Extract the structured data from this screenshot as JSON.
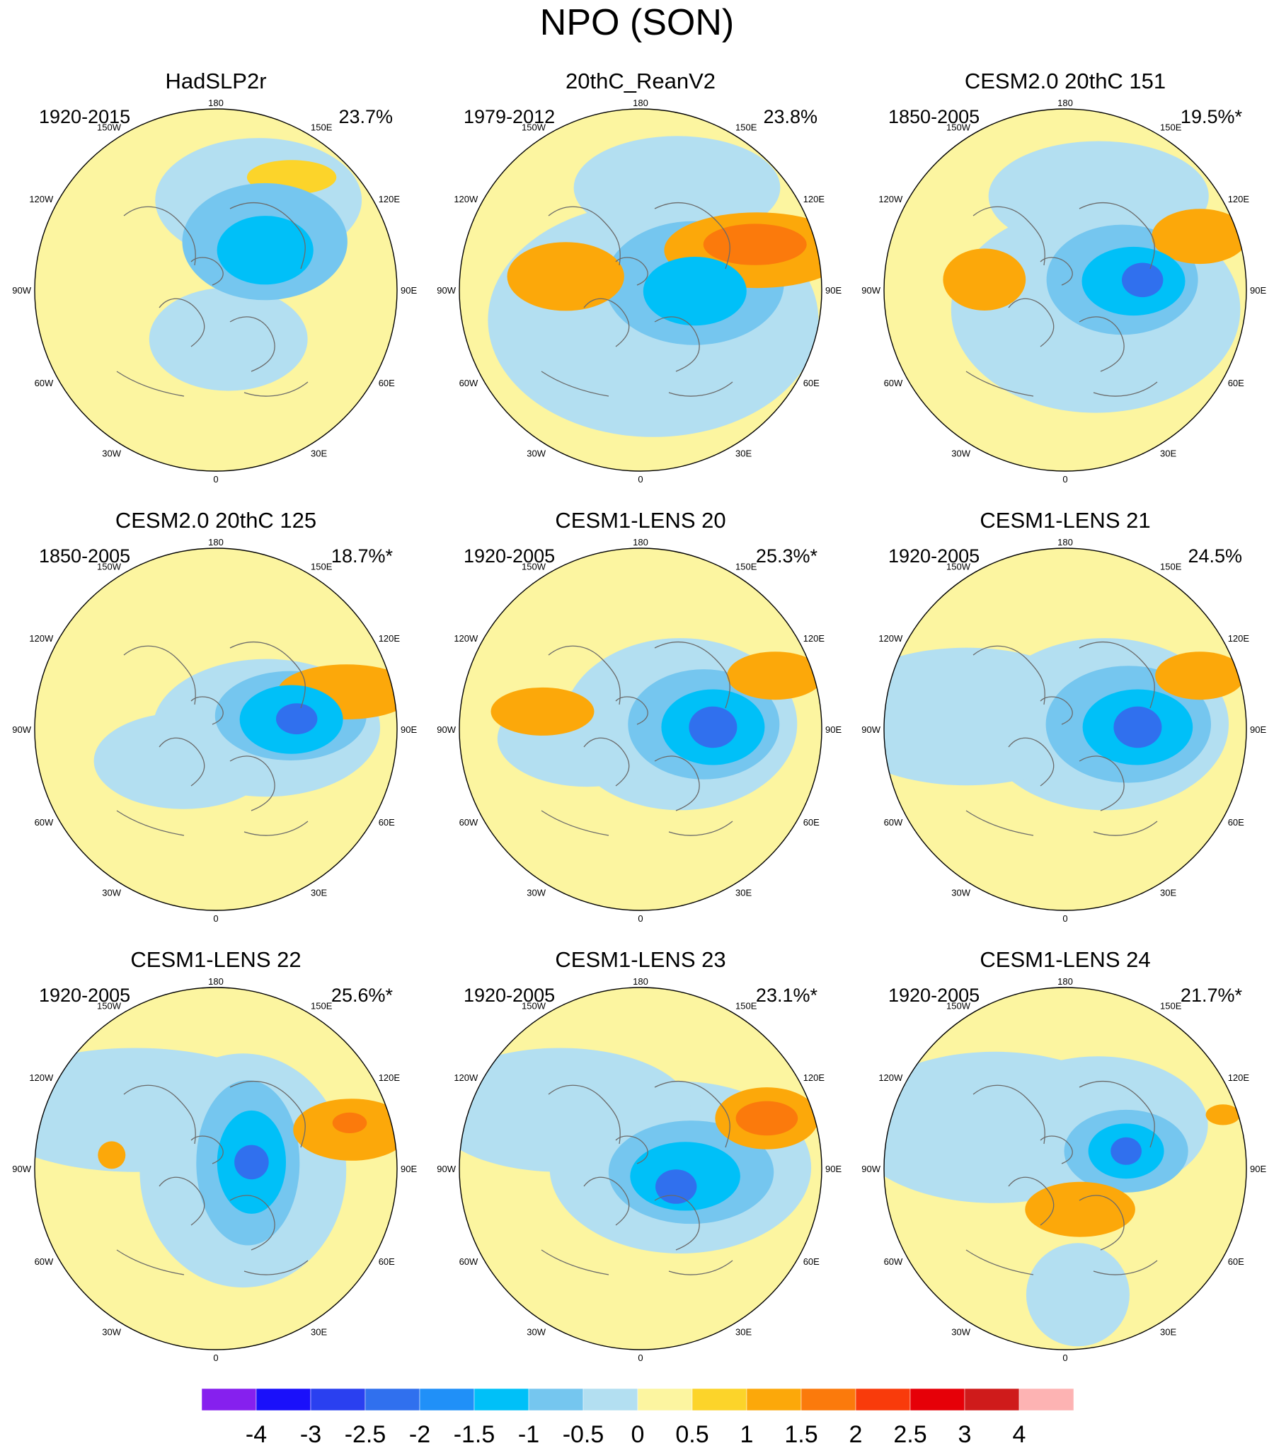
{
  "title": "NPO (SON)",
  "panels": [
    {
      "title": "HadSLP2r",
      "period": "1920-2015",
      "variance": "23.7%",
      "blobs": [
        {
          "lvl": -0.5,
          "a": 0.25,
          "r": 0.28,
          "sx": 0.23,
          "sy": 0.15
        },
        {
          "lvl": -0.5,
          "a": 2.7,
          "r": 0.55,
          "sx": 0.3,
          "sy": 0.18
        },
        {
          "lvl": -1.0,
          "a": 2.35,
          "r": 0.38,
          "sx": 0.24,
          "sy": 0.17
        },
        {
          "lvl": -1.5,
          "a": 2.25,
          "r": 0.35,
          "sx": 0.14,
          "sy": 0.1
        },
        {
          "lvl": 0.5,
          "a": 2.55,
          "r": 0.75,
          "sx": 0.13,
          "sy": 0.05
        }
      ]
    },
    {
      "title": "20thC_ReanV2",
      "period": "1979-2012",
      "variance": "23.8%",
      "blobs": [
        {
          "lvl": -0.5,
          "a": 0.4,
          "r": 0.18,
          "sx": 0.48,
          "sy": 0.34
        },
        {
          "lvl": -0.5,
          "a": 2.8,
          "r": 0.6,
          "sx": 0.3,
          "sy": 0.15
        },
        {
          "lvl": -1.0,
          "a": 1.7,
          "r": 0.3,
          "sx": 0.26,
          "sy": 0.18
        },
        {
          "lvl": -1.5,
          "a": 1.55,
          "r": 0.3,
          "sx": 0.15,
          "sy": 0.1
        },
        {
          "lvl": 1.0,
          "a": 1.9,
          "r": 0.68,
          "sx": 0.27,
          "sy": 0.11
        },
        {
          "lvl": 1.5,
          "a": 1.95,
          "r": 0.68,
          "sx": 0.15,
          "sy": 0.06
        },
        {
          "lvl": 1.0,
          "a": -1.75,
          "r": 0.42,
          "sx": 0.17,
          "sy": 0.1
        }
      ]
    },
    {
      "title": "CESM2.0 20thC 151",
      "period": "1850-2005",
      "variance": "19.5%*",
      "blobs": [
        {
          "lvl": -0.5,
          "a": 1.0,
          "r": 0.2,
          "sx": 0.42,
          "sy": 0.3
        },
        {
          "lvl": -0.5,
          "a": 2.8,
          "r": 0.55,
          "sx": 0.32,
          "sy": 0.16
        },
        {
          "lvl": -1.0,
          "a": 1.75,
          "r": 0.32,
          "sx": 0.22,
          "sy": 0.16
        },
        {
          "lvl": -1.5,
          "a": 1.7,
          "r": 0.38,
          "sx": 0.15,
          "sy": 0.1
        },
        {
          "lvl": -2.5,
          "a": 1.7,
          "r": 0.43,
          "sx": 0.06,
          "sy": 0.05
        },
        {
          "lvl": 1.0,
          "a": 1.95,
          "r": 0.8,
          "sx": 0.14,
          "sy": 0.08
        },
        {
          "lvl": 1.0,
          "a": -1.7,
          "r": 0.45,
          "sx": 0.12,
          "sy": 0.09
        }
      ]
    },
    {
      "title": "CESM2.0 20thC 125",
      "period": "1850-2005",
      "variance": "18.7%*",
      "blobs": [
        {
          "lvl": -0.5,
          "a": 1.6,
          "r": 0.28,
          "sx": 0.33,
          "sy": 0.2
        },
        {
          "lvl": -0.5,
          "a": -0.8,
          "r": 0.25,
          "sx": 0.26,
          "sy": 0.14
        },
        {
          "lvl": -1.0,
          "a": 1.75,
          "r": 0.42,
          "sx": 0.22,
          "sy": 0.13
        },
        {
          "lvl": -1.5,
          "a": 1.7,
          "r": 0.42,
          "sx": 0.15,
          "sy": 0.1
        },
        {
          "lvl": -2.5,
          "a": 1.7,
          "r": 0.45,
          "sx": 0.06,
          "sy": 0.045
        },
        {
          "lvl": 1.0,
          "a": 1.85,
          "r": 0.75,
          "sx": 0.2,
          "sy": 0.08
        }
      ]
    },
    {
      "title": "CESM1-LENS 20",
      "period": "1920-2005",
      "variance": "25.3%*",
      "blobs": [
        {
          "lvl": -0.5,
          "a": 1.7,
          "r": 0.22,
          "sx": 0.34,
          "sy": 0.25
        },
        {
          "lvl": -0.5,
          "a": -1.4,
          "r": 0.3,
          "sx": 0.26,
          "sy": 0.14
        },
        {
          "lvl": -1.0,
          "a": 1.65,
          "r": 0.35,
          "sx": 0.22,
          "sy": 0.16
        },
        {
          "lvl": -1.5,
          "a": 1.6,
          "r": 0.4,
          "sx": 0.15,
          "sy": 0.11
        },
        {
          "lvl": -2.5,
          "a": 1.6,
          "r": 0.4,
          "sx": 0.07,
          "sy": 0.06
        },
        {
          "lvl": 1.0,
          "a": 1.95,
          "r": 0.8,
          "sx": 0.14,
          "sy": 0.07
        },
        {
          "lvl": 1.0,
          "a": -1.75,
          "r": 0.55,
          "sx": 0.15,
          "sy": 0.07
        }
      ]
    },
    {
      "title": "CESM1-LENS 21",
      "period": "1920-2005",
      "variance": "24.5%",
      "blobs": [
        {
          "lvl": -0.5,
          "a": 1.7,
          "r": 0.22,
          "sx": 0.36,
          "sy": 0.25
        },
        {
          "lvl": -0.5,
          "a": -1.7,
          "r": 0.55,
          "sx": 0.4,
          "sy": 0.2
        },
        {
          "lvl": -1.0,
          "a": 1.65,
          "r": 0.35,
          "sx": 0.24,
          "sy": 0.17
        },
        {
          "lvl": -1.5,
          "a": 1.6,
          "r": 0.4,
          "sx": 0.16,
          "sy": 0.11
        },
        {
          "lvl": -2.5,
          "a": 1.6,
          "r": 0.4,
          "sx": 0.07,
          "sy": 0.06
        },
        {
          "lvl": 1.0,
          "a": 1.95,
          "r": 0.8,
          "sx": 0.13,
          "sy": 0.07
        }
      ]
    },
    {
      "title": "CESM1-LENS 22",
      "period": "1920-2005",
      "variance": "25.6%*",
      "blobs": [
        {
          "lvl": -0.5,
          "a": 1.5,
          "r": 0.15,
          "sx": 0.3,
          "sy": 0.34
        },
        {
          "lvl": -0.5,
          "a": -2.2,
          "r": 0.55,
          "sx": 0.45,
          "sy": 0.18
        },
        {
          "lvl": -1.0,
          "a": 1.75,
          "r": 0.18,
          "sx": 0.15,
          "sy": 0.24
        },
        {
          "lvl": -1.5,
          "a": 1.75,
          "r": 0.2,
          "sx": 0.1,
          "sy": 0.15
        },
        {
          "lvl": -2.5,
          "a": 1.75,
          "r": 0.2,
          "sx": 0.05,
          "sy": 0.05
        },
        {
          "lvl": 1.0,
          "a": 1.85,
          "r": 0.78,
          "sx": 0.17,
          "sy": 0.09
        },
        {
          "lvl": 1.5,
          "a": 1.9,
          "r": 0.78,
          "sx": 0.05,
          "sy": 0.03
        },
        {
          "lvl": 1.0,
          "a": -1.7,
          "r": 0.58,
          "sx": 0.04,
          "sy": 0.04
        }
      ]
    },
    {
      "title": "CESM1-LENS 23",
      "period": "1920-2005",
      "variance": "23.1%*",
      "blobs": [
        {
          "lvl": -0.5,
          "a": 1.6,
          "r": 0.22,
          "sx": 0.38,
          "sy": 0.25
        },
        {
          "lvl": -0.5,
          "a": -2.2,
          "r": 0.55,
          "sx": 0.38,
          "sy": 0.18
        },
        {
          "lvl": -1.0,
          "a": 1.5,
          "r": 0.28,
          "sx": 0.24,
          "sy": 0.15
        },
        {
          "lvl": -1.5,
          "a": 1.4,
          "r": 0.25,
          "sx": 0.16,
          "sy": 0.1
        },
        {
          "lvl": -2.5,
          "a": 1.1,
          "r": 0.22,
          "sx": 0.06,
          "sy": 0.05
        },
        {
          "lvl": 1.0,
          "a": 1.95,
          "r": 0.75,
          "sx": 0.15,
          "sy": 0.09
        },
        {
          "lvl": 1.5,
          "a": 1.95,
          "r": 0.75,
          "sx": 0.09,
          "sy": 0.05
        }
      ]
    },
    {
      "title": "CESM1-LENS 24",
      "period": "1920-2005",
      "variance": "21.7%*",
      "blobs": [
        {
          "lvl": -0.5,
          "a": 2.5,
          "r": 0.3,
          "sx": 0.32,
          "sy": 0.2
        },
        {
          "lvl": -0.5,
          "a": -2.1,
          "r": 0.45,
          "sx": 0.42,
          "sy": 0.22
        },
        {
          "lvl": -0.5,
          "a": 0.1,
          "r": 0.7,
          "sx": 0.15,
          "sy": 0.15
        },
        {
          "lvl": -1.0,
          "a": 1.85,
          "r": 0.35,
          "sx": 0.18,
          "sy": 0.12
        },
        {
          "lvl": -1.5,
          "a": 1.85,
          "r": 0.35,
          "sx": 0.11,
          "sy": 0.08
        },
        {
          "lvl": -2.5,
          "a": 1.85,
          "r": 0.35,
          "sx": 0.045,
          "sy": 0.04
        },
        {
          "lvl": 1.0,
          "a": 0.35,
          "r": 0.24,
          "sx": 0.16,
          "sy": 0.08
        },
        {
          "lvl": 1.0,
          "a": 1.9,
          "r": 0.92,
          "sx": 0.05,
          "sy": 0.03
        }
      ]
    }
  ],
  "compass": {
    "top": "180",
    "bottom": "0",
    "left": "90W",
    "right": "90E",
    "upper_left": "150W",
    "upper_right": "150E",
    "mid_upper_left": "120W",
    "mid_upper_right": "120E",
    "mid_lower_left": "60W",
    "mid_lower_right": "60E",
    "lower_left": "30W",
    "lower_right": "30E"
  },
  "colorbar": {
    "levels": [
      -4,
      -3,
      -2.5,
      -2,
      -1.5,
      -1,
      -0.5,
      0,
      0.5,
      1,
      1.5,
      2,
      2.5,
      3,
      4
    ],
    "labels": [
      "-4",
      "-3",
      "-2.5",
      "-2",
      "-1.5",
      "-1",
      "-0.5",
      "0",
      "0.5",
      "1",
      "1.5",
      "2",
      "2.5",
      "3",
      "4"
    ],
    "colors": [
      "#8620ee",
      "#1a10fa",
      "#2a40f0",
      "#3070ee",
      "#2090f8",
      "#00c0f8",
      "#75c6ef",
      "#b3dff1",
      "#fcf5a0",
      "#fcd42a",
      "#fca80a",
      "#fb7a0c",
      "#f93b0b",
      "#e60008",
      "#cf1b1b",
      "#fdb3b3"
    ]
  }
}
